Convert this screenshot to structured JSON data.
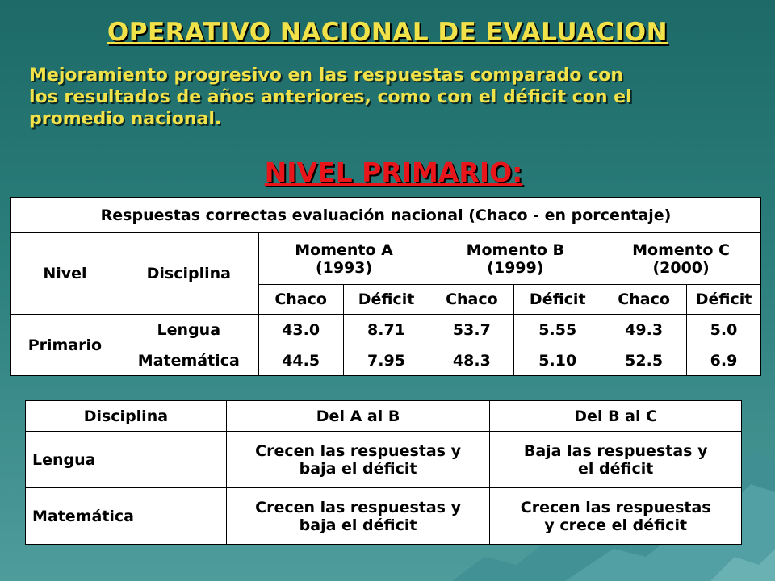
{
  "title": "OPERATIVO NACIONAL DE EVALUACION",
  "subtitle_lines": [
    "Mejoramiento progresivo en las respuestas comparado con",
    "los resultados de años anteriores, como con el déficit con el",
    "promedio nacional."
  ],
  "section_heading": "NIVEL PRIMARIO:",
  "table1": {
    "caption": "Respuestas correctas evaluación nacional (Chaco - en porcentaje)",
    "col_nivel": "Nivel",
    "col_disciplina": "Disciplina",
    "moments": [
      {
        "line1": "Momento A",
        "line2": "(1993)"
      },
      {
        "line1": "Momento B",
        "line2": "(1999)"
      },
      {
        "line1": "Momento C",
        "line2": "(2000)"
      }
    ],
    "sub_chaco": "Chaco",
    "sub_deficit": "Déficit",
    "nivel_value": "Primario",
    "rows": [
      {
        "disciplina": "Lengua",
        "values": [
          "43.0",
          "8.71",
          "53.7",
          "5.55",
          "49.3",
          "5.0"
        ]
      },
      {
        "disciplina": "Matemática",
        "values": [
          "44.5",
          "7.95",
          "48.3",
          "5.10",
          "52.5",
          "6.9"
        ]
      }
    ]
  },
  "table2": {
    "headers": [
      "Disciplina",
      "Del A al B",
      "Del B al C"
    ],
    "rows": [
      {
        "disciplina": "Lengua",
        "ab": [
          "Crecen las respuestas y",
          "baja el déficit"
        ],
        "bc": [
          "Baja las respuestas y",
          "el déficit"
        ]
      },
      {
        "disciplina": "Matemática",
        "ab": [
          "Crecen las respuestas y",
          "baja el déficit"
        ],
        "bc": [
          "Crecen las respuestas",
          "y crece el déficit"
        ]
      }
    ]
  },
  "colors": {
    "title": "#f2e24a",
    "section": "#e8151a",
    "background": "#2b7f7c"
  }
}
